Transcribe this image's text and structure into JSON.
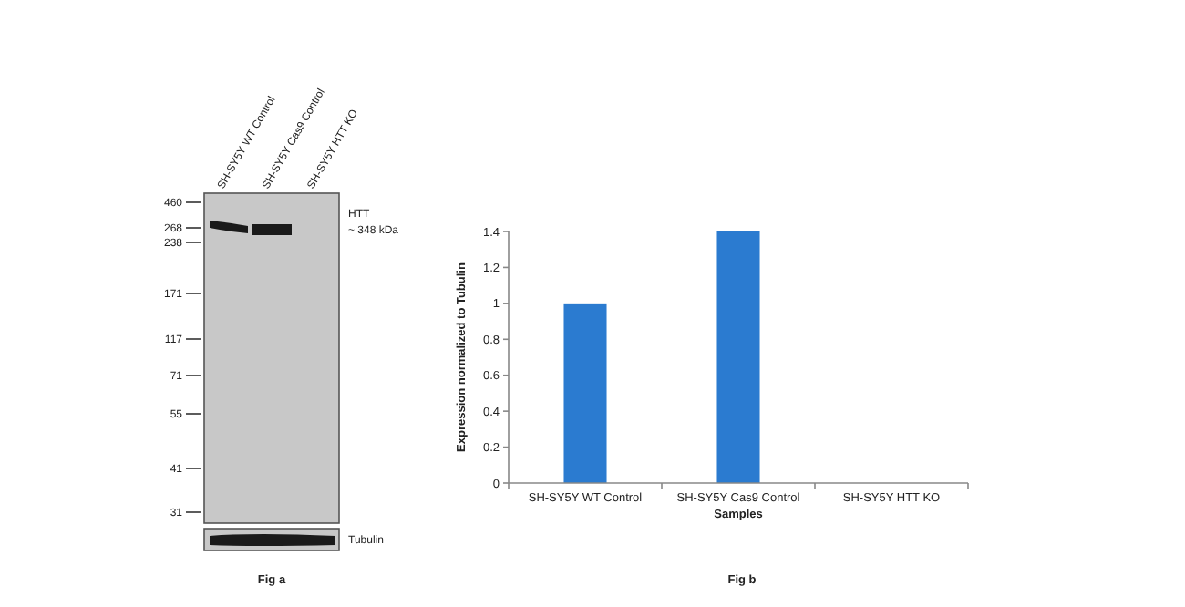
{
  "chart_data": [
    {
      "type": "other",
      "categories": [
        "SH-SY5Y WT Control",
        "SH-SY5Y Cas9 Control",
        "SH-SY5Y HTT KO"
      ],
      "annotations": [
        "460",
        "268",
        "238",
        "171",
        "117",
        "71",
        "55",
        "41",
        "31",
        "HTT",
        "~ 348 kDa",
        "Tubulin"
      ],
      "xlabel": "Fig a"
    },
    {
      "type": "bar",
      "categories": [
        "SH-SY5Y WT Control",
        "SH-SY5Y Cas9 Control",
        "SH-SY5Y HTT KO"
      ],
      "values": [
        1,
        1.4,
        0
      ],
      "color": "#2b7bd0",
      "ylim": [
        0,
        1.4
      ],
      "yticks": [
        0,
        0.2,
        0.4,
        0.6,
        0.8,
        1,
        1.2,
        1.4
      ],
      "ylabel": "Expression normalized to Tubulin",
      "xlabel": "Samples",
      "annotations": [
        "Fig b"
      ],
      "grid": false
    }
  ]
}
